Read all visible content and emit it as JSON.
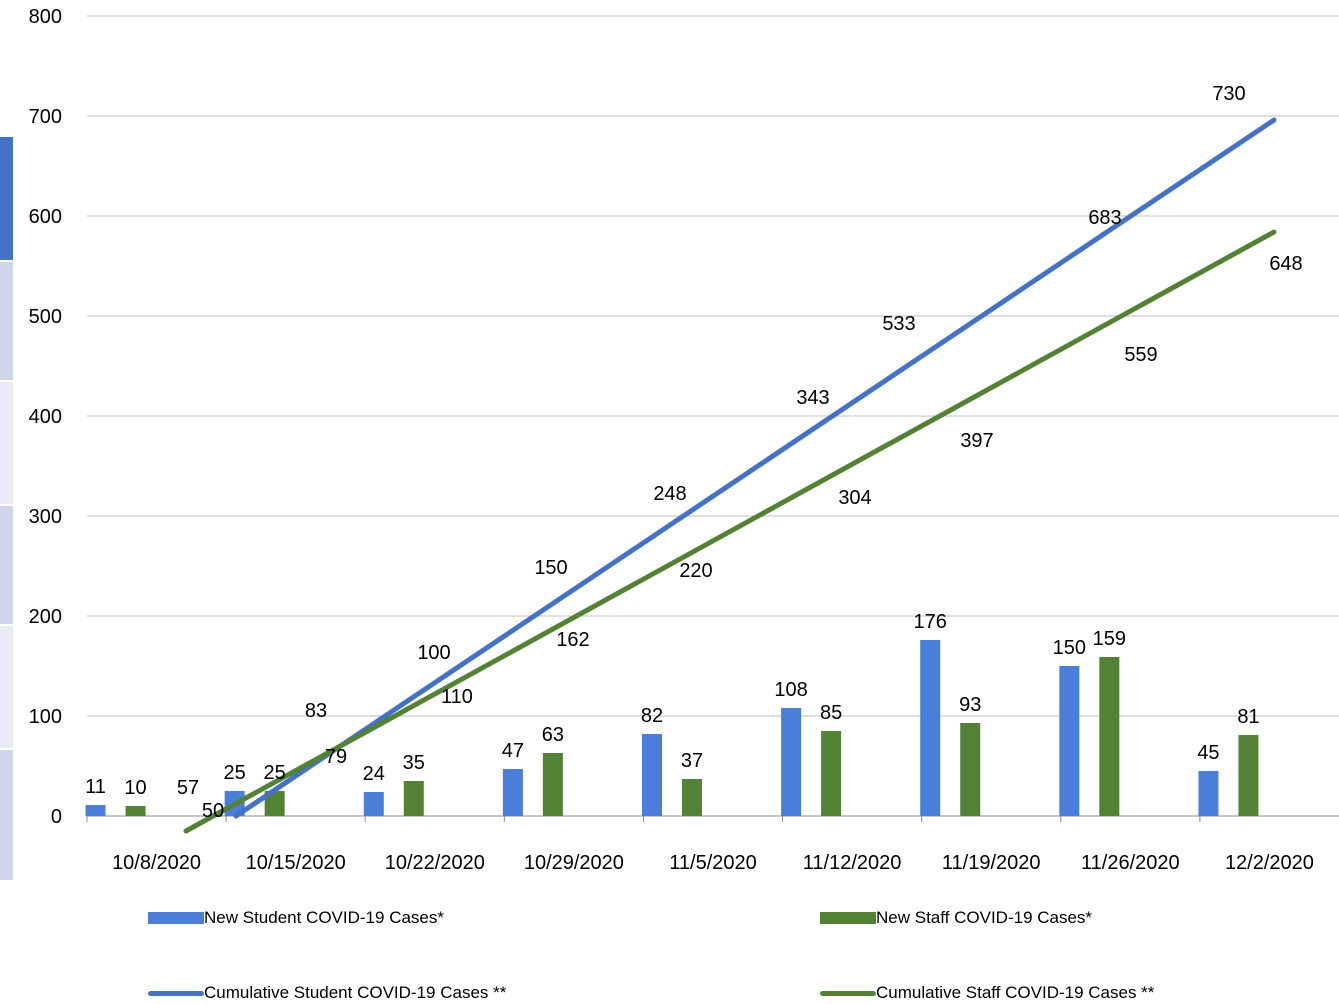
{
  "chart_data": {
    "type": "bar",
    "categories": [
      "10/8/2020",
      "10/15/2020",
      "10/22/2020",
      "10/29/2020",
      "11/5/2020",
      "11/12/2020",
      "11/19/2020",
      "11/26/2020",
      "12/2/2020"
    ],
    "ylim": [
      0,
      800
    ],
    "yticks": [
      0,
      100,
      200,
      300,
      400,
      500,
      600,
      700,
      800
    ],
    "grid": true,
    "legend_position": "bottom",
    "series": [
      {
        "name": "New Student COVID-19 Cases*",
        "kind": "bar",
        "color": "#4a7ed8",
        "values": [
          11,
          25,
          24,
          47,
          82,
          108,
          176,
          150,
          45
        ]
      },
      {
        "name": "New Staff COVID-19 Cases*",
        "kind": "bar",
        "color": "#548235",
        "values": [
          10,
          25,
          35,
          63,
          37,
          85,
          93,
          159,
          81
        ]
      },
      {
        "name": "Cumulative Student COVID-19 Cases **",
        "kind": "line",
        "color": "#4472c4",
        "labels": [
          57,
          83,
          100,
          150,
          248,
          343,
          533,
          683,
          730
        ]
      },
      {
        "name": "Cumulative Staff COVID-19 Cases **",
        "kind": "line",
        "color": "#548235",
        "labels": [
          50,
          79,
          110,
          162,
          220,
          304,
          397,
          559,
          648
        ]
      }
    ]
  }
}
